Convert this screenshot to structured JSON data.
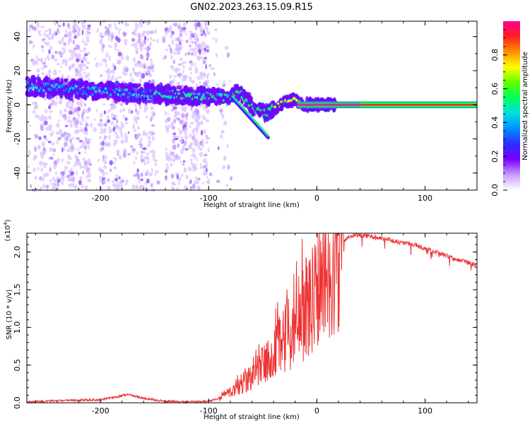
{
  "title": "GN02.2023.263.15.09.R15",
  "chart_data": [
    {
      "type": "heatmap",
      "xlabel": "Height of straight line (km)",
      "ylabel": "Frequency (Hz)",
      "xlim": [
        -268,
        148
      ],
      "ylim": [
        -50,
        49
      ],
      "xticks": [
        -200,
        -100,
        0,
        100
      ],
      "xtick_labels": [
        "-200",
        "-100",
        "0",
        "100"
      ],
      "yticks": [
        -40,
        -20,
        0,
        20,
        40
      ],
      "ytick_labels": [
        "-40",
        "-20",
        "0",
        "20",
        "40"
      ],
      "ridge": {
        "x": [
          -268,
          -240,
          -220,
          -200,
          -180,
          -160,
          -140,
          -120,
          -100,
          -90,
          -80,
          -74,
          -66,
          -58,
          -50,
          -44,
          -38,
          -32,
          -26,
          -20,
          -16,
          -10,
          0,
          20,
          60,
          100,
          148
        ],
        "y": [
          11,
          10,
          9,
          8,
          7,
          6.5,
          6,
          5.5,
          5,
          4.5,
          4,
          8,
          3,
          -2,
          -5,
          -4,
          -1,
          1,
          2,
          3,
          1,
          0,
          0,
          0,
          0,
          0,
          0
        ]
      },
      "colorbar": {
        "label": "Normalized spectral amplitude",
        "range": [
          0,
          1
        ],
        "ticks": [
          0.0,
          0.2,
          0.4,
          0.6,
          0.8
        ],
        "tick_labels": [
          "0.0",
          "0.2",
          "0.4",
          "0.6",
          "0.8"
        ],
        "colors": [
          "#ffffff",
          "#c79bff",
          "#7a00ff",
          "#2d2dff",
          "#0090ff",
          "#00e0e0",
          "#00ff60",
          "#60ff00",
          "#ffff00",
          "#ff9000",
          "#ff2020",
          "#ff0090"
        ]
      },
      "grid": false
    },
    {
      "type": "line",
      "xlabel": "Height of straight line (km)",
      "ylabel": "SNR (10 * v/v)",
      "y_exponent_label": "(x10",
      "y_exponent": "4",
      "y_exponent_close": ")",
      "xlim": [
        -268,
        148
      ],
      "ylim": [
        0,
        2.25
      ],
      "xticks": [
        -200,
        -100,
        0,
        100
      ],
      "xtick_labels": [
        "-200",
        "-100",
        "0",
        "100"
      ],
      "yticks": [
        0.0,
        0.5,
        1.0,
        1.5,
        2.0
      ],
      "ytick_labels": [
        "0.0",
        "0.5",
        "1.0",
        "1.5",
        "2.0"
      ],
      "series": [
        {
          "color": "#ee3333",
          "x": [
            -268,
            -240,
            -200,
            -175,
            -160,
            -140,
            -120,
            -100,
            -90,
            -80,
            -75,
            -70,
            -65,
            -60,
            -55,
            -50,
            -45,
            -40,
            -35,
            -30,
            -25,
            -20,
            -15,
            -10,
            -5,
            0,
            5,
            10,
            15,
            20,
            25,
            30,
            35,
            40,
            50,
            60,
            70,
            80,
            90,
            100,
            110,
            120,
            130,
            140,
            148
          ],
          "y": [
            0.01,
            0.03,
            0.04,
            0.11,
            0.06,
            0.02,
            0.01,
            0.02,
            0.06,
            0.14,
            0.2,
            0.25,
            0.3,
            0.38,
            0.45,
            0.5,
            0.55,
            0.62,
            0.75,
            0.85,
            0.95,
            1.05,
            1.15,
            1.25,
            1.32,
            1.45,
            1.6,
            1.8,
            1.95,
            2.08,
            2.15,
            2.2,
            2.22,
            2.22,
            2.21,
            2.18,
            2.15,
            2.12,
            2.1,
            2.05,
            2.0,
            1.95,
            1.9,
            1.86,
            1.82
          ]
        }
      ],
      "grid": false
    }
  ]
}
